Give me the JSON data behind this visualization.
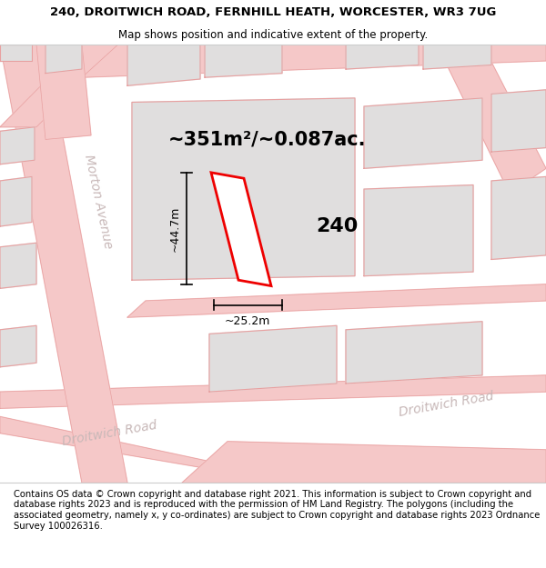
{
  "title_line1": "240, DROITWICH ROAD, FERNHILL HEATH, WORCESTER, WR3 7UG",
  "title_line2": "Map shows position and indicative extent of the property.",
  "area_text": "~351m²/~0.087ac.",
  "property_number": "240",
  "dim_height": "~44.7m",
  "dim_width": "~25.2m",
  "road_label_droitwich_bl": "Droitwich Road",
  "road_label_droitwich_br": "Droitwich Road",
  "road_label_morton": "Morton Avenue",
  "footer_text": "Contains OS data © Crown copyright and database right 2021. This information is subject to Crown copyright and database rights 2023 and is reproduced with the permission of HM Land Registry. The polygons (including the associated geometry, namely x, y co-ordinates) are subject to Crown copyright and database rights 2023 Ordnance Survey 100026316.",
  "map_bg": "#f7f0f0",
  "road_fill_color": "#f5c8c8",
  "road_line_color": "#e8a0a0",
  "building_fill": "#e0dede",
  "building_edge": "#e8a0a0",
  "property_outline_color": "#ee0000",
  "property_fill": "#ffffff",
  "road_label_color": "#c8b8b8",
  "title_fontsize": 9.5,
  "subtitle_fontsize": 8.5,
  "footer_fontsize": 7.2,
  "area_fontsize": 15,
  "number_fontsize": 16,
  "dim_fontsize": 9,
  "road_label_fontsize": 10
}
